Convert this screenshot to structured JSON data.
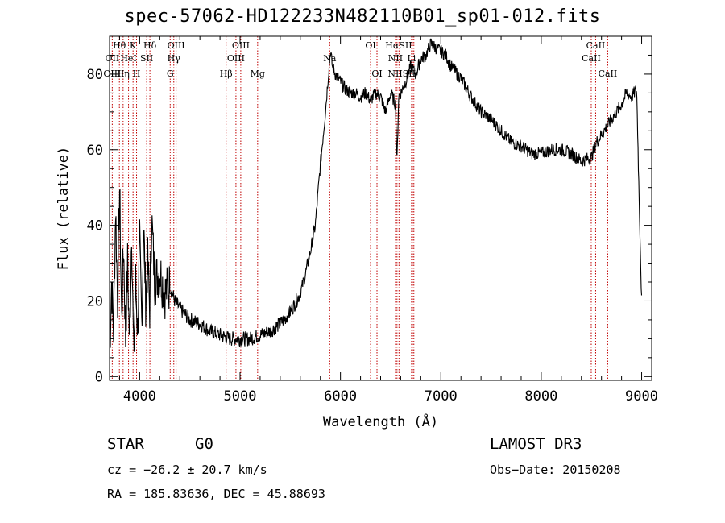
{
  "chart_data": {
    "type": "line",
    "title": "spec-57062-HD122233N482110B01_sp01-012.fits",
    "xlabel": "Wavelength (Å)",
    "ylabel": "Flux (relative)",
    "xlim": [
      3700,
      9100
    ],
    "ylim": [
      -1,
      90
    ],
    "xticks": [
      4000,
      5000,
      6000,
      7000,
      8000,
      9000
    ],
    "yticks": [
      0,
      20,
      40,
      60,
      80
    ],
    "series": [
      {
        "name": "spectrum",
        "x": [
          3700,
          3720,
          3740,
          3760,
          3780,
          3800,
          3820,
          3840,
          3860,
          3880,
          3900,
          3920,
          3940,
          3960,
          3980,
          4000,
          4020,
          4040,
          4060,
          4080,
          4100,
          4120,
          4150,
          4200,
          4250,
          4300,
          4350,
          4400,
          4500,
          4600,
          4700,
          4800,
          4900,
          5000,
          5100,
          5200,
          5300,
          5400,
          5500,
          5600,
          5650,
          5700,
          5750,
          5800,
          5850,
          5880,
          5900,
          5920,
          5950,
          6000,
          6050,
          6100,
          6150,
          6200,
          6250,
          6300,
          6350,
          6400,
          6450,
          6500,
          6550,
          6563,
          6580,
          6600,
          6650,
          6700,
          6750,
          6800,
          6850,
          6900,
          6950,
          7000,
          7050,
          7100,
          7200,
          7300,
          7400,
          7500,
          7600,
          7700,
          7800,
          7900,
          8000,
          8100,
          8200,
          8300,
          8400,
          8500,
          8550,
          8600,
          8650,
          8700,
          8750,
          8800,
          8850,
          8900,
          8950,
          9000
        ],
        "values": [
          5,
          25,
          12,
          45,
          20,
          50,
          15,
          35,
          10,
          30,
          8,
          40,
          5,
          25,
          12,
          35,
          15,
          40,
          20,
          30,
          18,
          42,
          25,
          28,
          22,
          24,
          20,
          18,
          15,
          14,
          12,
          11,
          10,
          10,
          10,
          11,
          12,
          14,
          17,
          22,
          27,
          33,
          40,
          56,
          70,
          80,
          86,
          82,
          80,
          78,
          76,
          75,
          75,
          74,
          75,
          73,
          75,
          74,
          70,
          75,
          72,
          56,
          74,
          75,
          78,
          82,
          80,
          84,
          85,
          88,
          87,
          86,
          85,
          82,
          79,
          74,
          70,
          68,
          65,
          62,
          61,
          59,
          59,
          60,
          60,
          59,
          57,
          58,
          62,
          64,
          66,
          68,
          70,
          72,
          75,
          74,
          76,
          20
        ]
      }
    ],
    "line_markers": {
      "row1": [
        {
          "label": "Hθ",
          "wave": 3798
        },
        {
          "label": "K",
          "wave": 3934
        },
        {
          "label": "Hδ",
          "wave": 4102
        },
        {
          "label": "OIII",
          "wave": 4363
        },
        {
          "label": "OIII",
          "wave": 5007
        },
        {
          "label": "OI",
          "wave": 6300
        },
        {
          "label": "HαSII",
          "wave": 6580
        },
        {
          "label": "CaII",
          "wave": 8542
        }
      ],
      "row2": [
        {
          "label": "OII",
          "wave": 3727
        },
        {
          "label": "HeI",
          "wave": 3889
        },
        {
          "label": "SII",
          "wave": 4070
        },
        {
          "label": "Hγ",
          "wave": 4340
        },
        {
          "label": "OIII",
          "wave": 4959
        },
        {
          "label": "Na",
          "wave": 5893
        },
        {
          "label": "NII",
          "wave": 6548
        },
        {
          "label": "Li",
          "wave": 6708
        },
        {
          "label": "CaII",
          "wave": 8498
        }
      ],
      "row3": [
        {
          "label": "OIII",
          "wave": 3727
        },
        {
          "label": "Hη",
          "wave": 3835
        },
        {
          "label": "H",
          "wave": 3969
        },
        {
          "label": "G",
          "wave": 4304
        },
        {
          "label": "Hβ",
          "wave": 4861
        },
        {
          "label": "Mg",
          "wave": 5175
        },
        {
          "label": "OI",
          "wave": 6364
        },
        {
          "label": "NIISII",
          "wave": 6610
        },
        {
          "label": "CaII",
          "wave": 8662
        }
      ],
      "dotted_lines": [
        3727,
        3798,
        3835,
        3889,
        3934,
        3969,
        4070,
        4102,
        4304,
        4340,
        4363,
        4861,
        4959,
        5007,
        5175,
        5893,
        6300,
        6364,
        6548,
        6563,
        6583,
        6708,
        6717,
        6731,
        8498,
        8542,
        8662
      ]
    }
  },
  "info": {
    "object_type": "STAR",
    "subclass": "G0",
    "survey": "LAMOST DR3",
    "cz": "cz = −26.2 ± 20.7 km/s",
    "obs_date": "Obs−Date: 20150208",
    "coords": "RA = 185.83636, DEC =  45.88693"
  },
  "colors": {
    "spectrum": "#000000",
    "marker_line": "#c00000",
    "axis": "#000000"
  }
}
